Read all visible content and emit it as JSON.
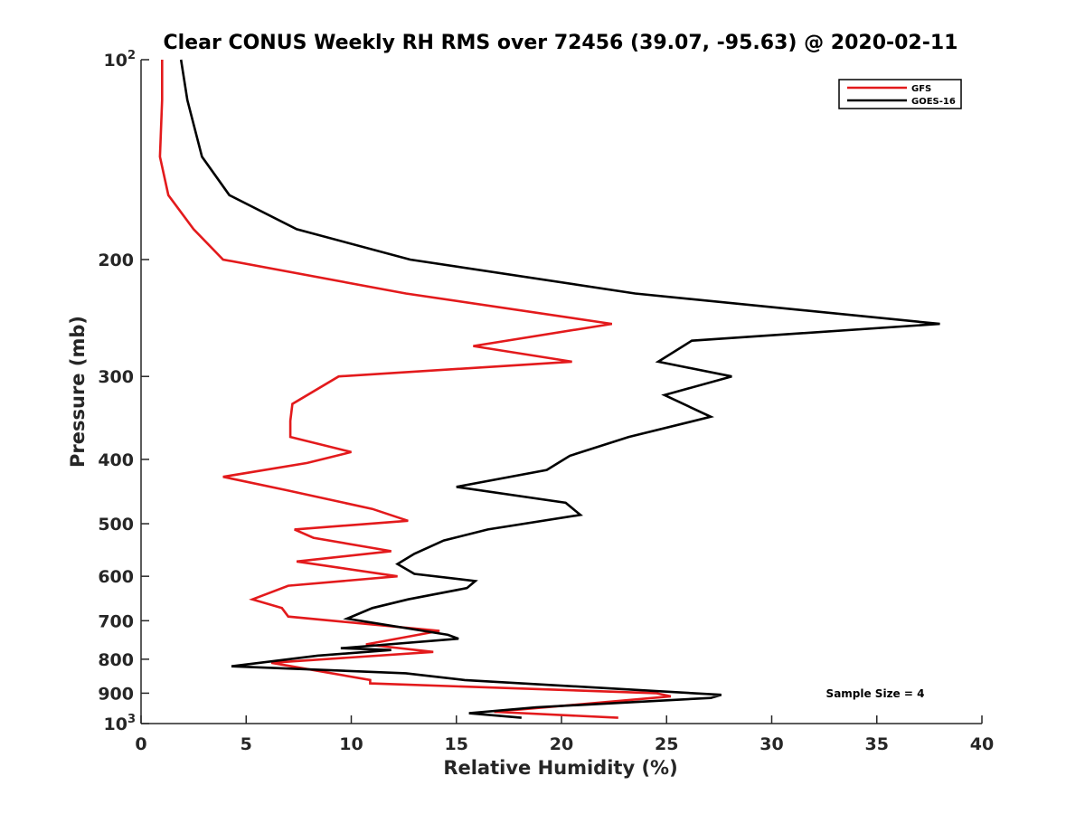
{
  "chart_data": {
    "type": "line",
    "title": "Clear CONUS Weekly RH RMS over 72456 (39.07, -95.63) @ 2020-02-11",
    "xlabel": "Relative Humidity (%)",
    "ylabel": "Pressure (mb)",
    "xlim": [
      0,
      40
    ],
    "ylim": [
      100,
      1000
    ],
    "yscale": "log",
    "y_reversed": true,
    "x_ticks": [
      0,
      5,
      10,
      15,
      20,
      25,
      30,
      35,
      40
    ],
    "y_ticks": [
      {
        "value": 100,
        "label": "10",
        "sup": "2"
      },
      {
        "value": 200,
        "label": "200"
      },
      {
        "value": 300,
        "label": "300"
      },
      {
        "value": 400,
        "label": "400"
      },
      {
        "value": 500,
        "label": "500"
      },
      {
        "value": 600,
        "label": "600"
      },
      {
        "value": 700,
        "label": "700"
      },
      {
        "value": 800,
        "label": "800"
      },
      {
        "value": 900,
        "label": "900"
      },
      {
        "value": 1000,
        "label": "10",
        "sup": "3"
      }
    ],
    "grid": false,
    "legend_position": "top-right",
    "series": [
      {
        "name": "GFS",
        "color": "#e31a1c",
        "rh": [
          1.0,
          1.0,
          0.9,
          1.3,
          2.5,
          3.9,
          12.6,
          22.4,
          15.8,
          20.5,
          9.4,
          7.2,
          7.1,
          7.1,
          10.0,
          7.9,
          3.9,
          6.9,
          11.0,
          12.7,
          7.3,
          8.2,
          11.9,
          7.4,
          12.2,
          7.0,
          5.3,
          6.7,
          7.0,
          14.2,
          10.7,
          13.9,
          6.2,
          10.9,
          10.9,
          24.5,
          25.2,
          16.8,
          22.7
        ],
        "pressure": [
          100,
          115,
          140,
          160,
          180,
          200,
          225,
          250,
          270,
          285,
          300,
          330,
          350,
          370,
          390,
          405,
          425,
          445,
          475,
          495,
          510,
          525,
          550,
          570,
          600,
          620,
          650,
          670,
          690,
          725,
          760,
          780,
          810,
          860,
          870,
          900,
          910,
          960,
          980
        ]
      },
      {
        "name": "GOES-16",
        "color": "#000000",
        "rh": [
          1.9,
          2.2,
          2.9,
          4.2,
          7.4,
          12.8,
          23.5,
          38.0,
          26.2,
          24.6,
          28.1,
          24.9,
          27.1,
          23.2,
          20.4,
          19.3,
          15.0,
          20.2,
          20.9,
          16.5,
          14.4,
          13.0,
          12.2,
          13.0,
          15.9,
          15.5,
          12.7,
          11.0,
          9.8,
          14.6,
          15.1,
          9.5,
          11.9,
          8.4,
          4.3,
          12.6,
          15.4,
          27.6,
          27.1,
          18.8,
          15.6,
          18.1
        ],
        "pressure": [
          100,
          115,
          140,
          160,
          180,
          200,
          225,
          250,
          265,
          285,
          300,
          320,
          345,
          370,
          395,
          415,
          440,
          465,
          485,
          510,
          530,
          555,
          575,
          595,
          610,
          625,
          650,
          670,
          695,
          735,
          745,
          770,
          775,
          790,
          820,
          840,
          860,
          905,
          915,
          945,
          965,
          980
        ]
      }
    ],
    "annotation": "Sample Size = 4"
  }
}
